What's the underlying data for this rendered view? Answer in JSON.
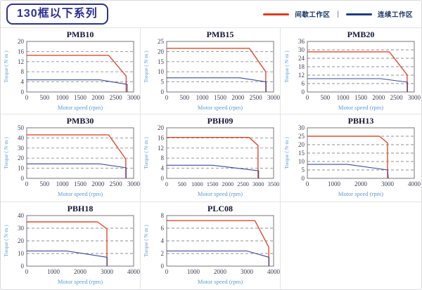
{
  "header": {
    "title": "130框以下系列",
    "legend": [
      {
        "label": "间歇工作区",
        "color": "#df3a20"
      },
      {
        "label": "连续工作区",
        "color": "#1f3e80"
      }
    ],
    "legend_separator": "|"
  },
  "chart_defaults": {
    "xlabel": "Motor speed (rpm)",
    "ylabel": "Torque ( N·m )",
    "axis_label_color": "#5b9bd5",
    "tick_color": "#3c3c50",
    "title_color": "#141432",
    "grid_color": "#8f8f94",
    "border_color": "#77777c",
    "legend_position": "top-right",
    "grid": "horizontal-dashed"
  },
  "chart_data": [
    {
      "type": "line",
      "title": "PMB10",
      "xlabel": "Motor speed (rpm)",
      "ylabel": "Torque ( N·m )",
      "xlim": [
        0,
        3000
      ],
      "xticks": [
        0,
        500,
        1000,
        1500,
        2000,
        2500,
        3000
      ],
      "ylim": [
        0,
        20
      ],
      "yticks": [
        0,
        4,
        8,
        12,
        16,
        20
      ],
      "series": [
        {
          "name": "间歇工作区",
          "color": "#e04a30",
          "points": [
            [
              0,
              14.5
            ],
            [
              2300,
              14.5
            ],
            [
              2790,
              6.3
            ],
            [
              2790,
              0
            ]
          ]
        },
        {
          "name": "连续工作区",
          "color": "#3c4b96",
          "points": [
            [
              0,
              4.8
            ],
            [
              2050,
              4.8
            ],
            [
              2820,
              3.0
            ],
            [
              2820,
              0
            ]
          ]
        }
      ]
    },
    {
      "type": "line",
      "title": "PMB15",
      "xlabel": "Motor speed (rpm)",
      "ylabel": "Torque ( N·m )",
      "xlim": [
        0,
        3000
      ],
      "xticks": [
        0,
        500,
        1000,
        1500,
        2000,
        2500,
        3000
      ],
      "ylim": [
        0,
        25
      ],
      "yticks": [
        0,
        5,
        10,
        15,
        20,
        25
      ],
      "series": [
        {
          "name": "间歇工作区",
          "color": "#e04a30",
          "points": [
            [
              0,
              21.6
            ],
            [
              2320,
              21.6
            ],
            [
              2780,
              10
            ],
            [
              2780,
              0
            ]
          ]
        },
        {
          "name": "连续工作区",
          "color": "#3c4b96",
          "points": [
            [
              0,
              7
            ],
            [
              2050,
              7
            ],
            [
              2790,
              5
            ],
            [
              2790,
              0
            ]
          ]
        }
      ]
    },
    {
      "type": "line",
      "title": "PMB20",
      "xlabel": "Motor speed (rpm)",
      "ylabel": "Torque ( N·m )",
      "xlim": [
        0,
        3000
      ],
      "xticks": [
        0,
        500,
        1000,
        1500,
        2000,
        2500,
        3000
      ],
      "ylim": [
        0,
        36
      ],
      "yticks": [
        0,
        6,
        12,
        18,
        24,
        30,
        36
      ],
      "series": [
        {
          "name": "间歇工作区",
          "color": "#e04a30",
          "points": [
            [
              0,
              28.6
            ],
            [
              2300,
              28.6
            ],
            [
              2800,
              12.2
            ],
            [
              2800,
              0
            ]
          ]
        },
        {
          "name": "连续工作区",
          "color": "#3c4b96",
          "points": [
            [
              0,
              9.5
            ],
            [
              2050,
              9.5
            ],
            [
              2810,
              7
            ],
            [
              2810,
              0
            ]
          ]
        }
      ]
    },
    {
      "type": "line",
      "title": "PMB30",
      "xlabel": "Motor speed (rpm)",
      "ylabel": "Torque ( N·m )",
      "xlim": [
        0,
        3000
      ],
      "xticks": [
        0,
        500,
        1000,
        1500,
        2000,
        2500,
        3000
      ],
      "ylim": [
        0,
        50
      ],
      "yticks": [
        0,
        10,
        20,
        30,
        40,
        50
      ],
      "series": [
        {
          "name": "间歇工作区",
          "color": "#e04a30",
          "points": [
            [
              0,
              43
            ],
            [
              2300,
              43
            ],
            [
              2780,
              19
            ],
            [
              2780,
              0
            ]
          ]
        },
        {
          "name": "连续工作区",
          "color": "#3c4b96",
          "points": [
            [
              0,
              14.3
            ],
            [
              2050,
              14.3
            ],
            [
              2790,
              10.5
            ],
            [
              2790,
              0
            ]
          ]
        }
      ]
    },
    {
      "type": "line",
      "title": "PBH09",
      "xlabel": "Motor speed (rpm)",
      "ylabel": "Torque ( N·m )",
      "xlim": [
        0,
        3500
      ],
      "xticks": [
        0,
        500,
        1000,
        1500,
        2000,
        2500,
        3000,
        3500
      ],
      "ylim": [
        0,
        20
      ],
      "yticks": [
        0,
        4,
        8,
        12,
        16,
        20
      ],
      "series": [
        {
          "name": "间歇工作区",
          "color": "#e04a30",
          "points": [
            [
              0,
              16.2
            ],
            [
              2700,
              16.2
            ],
            [
              2990,
              13
            ],
            [
              2990,
              0
            ]
          ]
        },
        {
          "name": "连续工作区",
          "color": "#3c4b96",
          "points": [
            [
              0,
              5.2
            ],
            [
              1500,
              5.2
            ],
            [
              3010,
              3.0
            ],
            [
              3010,
              0
            ]
          ]
        }
      ]
    },
    {
      "type": "line",
      "title": "PBH13",
      "xlabel": "Motor speed (rpm)",
      "ylabel": "Torque ( N·m )",
      "xlim": [
        0,
        4000
      ],
      "xticks": [
        0,
        1000,
        2000,
        3000,
        4000
      ],
      "ylim": [
        0,
        30
      ],
      "yticks": [
        0,
        5,
        10,
        15,
        20,
        25,
        30
      ],
      "series": [
        {
          "name": "间歇工作区",
          "color": "#e04a30",
          "points": [
            [
              0,
              25
            ],
            [
              2700,
              25
            ],
            [
              3000,
              21
            ],
            [
              3000,
              0
            ]
          ]
        },
        {
          "name": "连续工作区",
          "color": "#3c4b96",
          "points": [
            [
              0,
              8.3
            ],
            [
              1500,
              8.3
            ],
            [
              3000,
              5
            ],
            [
              3030,
              0
            ]
          ]
        }
      ]
    },
    {
      "type": "line",
      "title": "PBH18",
      "xlabel": "Motor speed (rpm)",
      "ylabel": "Torque ( N·m )",
      "xlim": [
        0,
        4000
      ],
      "xticks": [
        0,
        1000,
        2000,
        3000,
        4000
      ],
      "ylim": [
        0,
        40
      ],
      "yticks": [
        0,
        10,
        20,
        30,
        40
      ],
      "series": [
        {
          "name": "间歇工作区",
          "color": "#e04a30",
          "points": [
            [
              0,
              35
            ],
            [
              2650,
              35
            ],
            [
              3000,
              29.5
            ],
            [
              3000,
              0
            ]
          ]
        },
        {
          "name": "连续工作区",
          "color": "#3c4b96",
          "points": [
            [
              0,
              12
            ],
            [
              1500,
              12
            ],
            [
              3010,
              7
            ],
            [
              3010,
              0
            ]
          ]
        }
      ]
    },
    {
      "type": "line",
      "title": "PLC08",
      "xlabel": "Motor speed (rpm)",
      "ylabel": "Torque ( N·m )",
      "xlim": [
        0,
        4000
      ],
      "xticks": [
        0,
        1000,
        2000,
        3000,
        4000
      ],
      "ylim": [
        0,
        8
      ],
      "yticks": [
        0,
        2,
        4,
        6,
        8
      ],
      "series": [
        {
          "name": "间歇工作区",
          "color": "#e04a30",
          "points": [
            [
              0,
              7.2
            ],
            [
              3300,
              7.2
            ],
            [
              3820,
              3
            ],
            [
              3820,
              0
            ]
          ]
        },
        {
          "name": "连续工作区",
          "color": "#3c4b96",
          "points": [
            [
              0,
              2.4
            ],
            [
              3000,
              2.4
            ],
            [
              3830,
              1.4
            ],
            [
              3830,
              0
            ]
          ]
        }
      ]
    }
  ]
}
